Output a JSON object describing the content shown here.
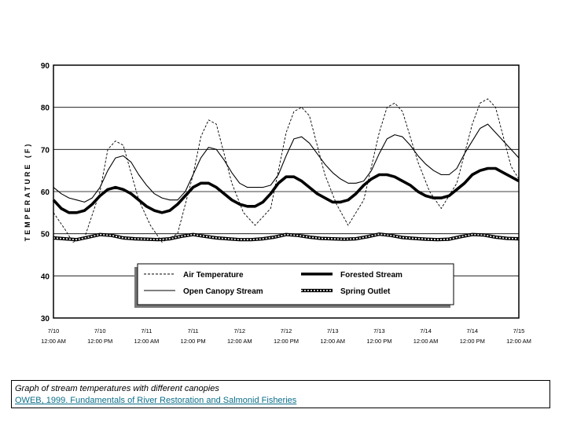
{
  "chart_data": {
    "type": "line",
    "ylabel": "TEMPERATURE (F)",
    "xlabel": "",
    "ylim": [
      30,
      90
    ],
    "yticks": [
      30,
      40,
      50,
      60,
      70,
      80,
      90
    ],
    "xlim": [
      0,
      120
    ],
    "xticks": [
      {
        "x": 0,
        "date": "7/10",
        "time": "12:00 AM"
      },
      {
        "x": 12,
        "date": "7/10",
        "time": "12:00 PM"
      },
      {
        "x": 24,
        "date": "7/11",
        "time": "12:00 AM"
      },
      {
        "x": 36,
        "date": "7/11",
        "time": "12:00 PM"
      },
      {
        "x": 48,
        "date": "7/12",
        "time": "12:00 AM"
      },
      {
        "x": 60,
        "date": "7/12",
        "time": "12:00 PM"
      },
      {
        "x": 72,
        "date": "7/13",
        "time": "12:00 AM"
      },
      {
        "x": 84,
        "date": "7/13",
        "time": "12:00 PM"
      },
      {
        "x": 96,
        "date": "7/14",
        "time": "12:00 AM"
      },
      {
        "x": 108,
        "date": "7/14",
        "time": "12:00 PM"
      },
      {
        "x": 120,
        "date": "7/15",
        "time": "12:00 AM"
      }
    ],
    "grid": true,
    "legend_position": "bottom-center",
    "series": [
      {
        "name": "Air Temperature",
        "style": "dashed",
        "color": "#000000",
        "x": [
          0,
          3,
          5,
          8,
          12,
          14,
          16,
          18,
          22,
          25,
          28,
          32,
          36,
          38,
          40,
          42,
          46,
          49,
          52,
          56,
          60,
          62,
          64,
          66,
          70,
          73,
          76,
          80,
          84,
          86,
          88,
          90,
          94,
          97,
          100,
          104,
          108,
          110,
          112,
          114,
          118,
          120
        ],
        "y": [
          55,
          51,
          48,
          49,
          60,
          70,
          72,
          71,
          58,
          52,
          48,
          50,
          64,
          73,
          77,
          76,
          62,
          55,
          52,
          56,
          74,
          79,
          80,
          78,
          64,
          57,
          52,
          58,
          74,
          80,
          81,
          79,
          67,
          60,
          56,
          62,
          76,
          81,
          82,
          80,
          66,
          63
        ]
      },
      {
        "name": "Open Canopy Stream",
        "style": "thin",
        "color": "#000000",
        "x": [
          0,
          2,
          4,
          6,
          8,
          10,
          12,
          14,
          16,
          18,
          20,
          22,
          24,
          26,
          28,
          30,
          32,
          34,
          36,
          38,
          40,
          42,
          44,
          46,
          48,
          50,
          52,
          54,
          56,
          58,
          60,
          62,
          64,
          66,
          68,
          70,
          72,
          74,
          76,
          78,
          80,
          82,
          84,
          86,
          88,
          90,
          92,
          94,
          96,
          98,
          100,
          102,
          104,
          106,
          108,
          110,
          112,
          114,
          116,
          118,
          120
        ],
        "y": [
          61,
          59.5,
          58.5,
          58,
          57.5,
          58.5,
          61,
          65,
          68,
          68.5,
          67,
          64,
          61.5,
          59.5,
          58.5,
          58,
          58,
          60,
          64,
          68,
          70.5,
          70,
          67.5,
          64.5,
          62,
          61,
          61,
          61,
          61.5,
          64,
          68.5,
          72.5,
          73,
          71.5,
          69,
          66.5,
          64.5,
          63,
          62,
          62,
          62.5,
          65,
          69,
          72.5,
          73.5,
          73,
          71,
          68.5,
          66.5,
          65,
          64,
          64,
          65.5,
          69,
          72,
          75,
          76,
          74,
          72,
          70,
          68
        ]
      },
      {
        "name": "Forested Stream",
        "style": "thick",
        "color": "#000000",
        "x": [
          0,
          2,
          4,
          6,
          8,
          10,
          12,
          14,
          16,
          18,
          20,
          22,
          24,
          26,
          28,
          30,
          32,
          34,
          36,
          38,
          40,
          42,
          44,
          46,
          48,
          50,
          52,
          54,
          56,
          58,
          60,
          62,
          64,
          66,
          68,
          70,
          72,
          74,
          76,
          78,
          80,
          82,
          84,
          86,
          88,
          90,
          92,
          94,
          96,
          98,
          100,
          102,
          104,
          106,
          108,
          110,
          112,
          114,
          116,
          118,
          120
        ],
        "y": [
          58,
          56,
          55,
          55,
          55.5,
          57,
          59,
          60.5,
          61,
          60.5,
          59.5,
          58,
          56.5,
          55.5,
          55,
          55.5,
          57,
          59,
          61,
          62,
          62,
          61,
          59.5,
          58,
          57,
          56.5,
          56.5,
          57.5,
          59.5,
          62,
          63.5,
          63.5,
          62.5,
          61,
          59.5,
          58.5,
          57.5,
          57.5,
          58,
          59.5,
          61.5,
          63,
          64,
          64,
          63.5,
          62.5,
          61.5,
          60,
          59,
          58.5,
          58.5,
          59,
          60.5,
          62,
          64,
          65,
          65.5,
          65.5,
          64.5,
          63.5,
          62.5
        ]
      },
      {
        "name": "Spring Outlet",
        "style": "dotted-thick",
        "color": "#000000",
        "x": [
          0,
          3,
          6,
          9,
          12,
          15,
          18,
          21,
          24,
          27,
          30,
          33,
          36,
          39,
          42,
          45,
          48,
          51,
          54,
          57,
          60,
          63,
          66,
          69,
          72,
          75,
          78,
          81,
          84,
          87,
          90,
          93,
          96,
          99,
          102,
          105,
          108,
          111,
          114,
          117,
          120
        ],
        "y": [
          49,
          48.8,
          48.6,
          49.2,
          49.8,
          49.6,
          49,
          48.8,
          48.7,
          48.6,
          48.8,
          49.4,
          49.8,
          49.4,
          49,
          48.8,
          48.6,
          48.6,
          48.8,
          49.2,
          49.8,
          49.6,
          49.2,
          48.9,
          48.8,
          48.7,
          48.8,
          49.3,
          49.9,
          49.6,
          49.1,
          48.9,
          48.7,
          48.6,
          48.7,
          49.3,
          49.8,
          49.7,
          49.2,
          48.9,
          48.8
        ]
      }
    ]
  },
  "caption": {
    "text": "Graph of stream temperatures with different canopies",
    "source": "OWEB, 1999. Fundamentals of River Restoration and Salmonid Fisheries"
  }
}
